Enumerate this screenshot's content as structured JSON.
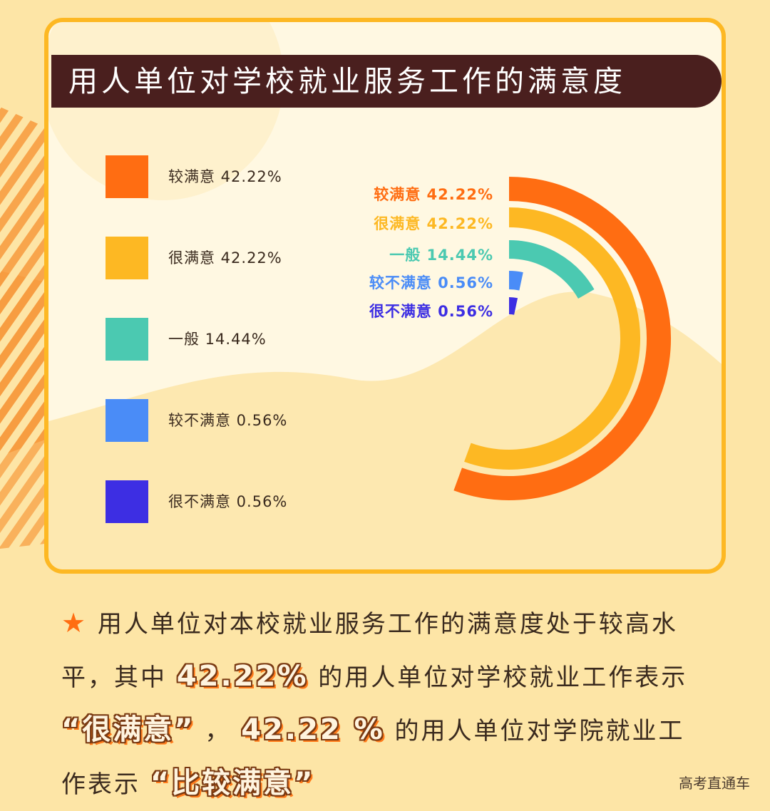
{
  "title": "用人单位对学校就业服务工作的满意度",
  "chart_data": {
    "type": "pie",
    "title": "用人单位对学校就业服务工作的满意度",
    "categories": [
      "较满意",
      "很满意",
      "一般",
      "较不满意",
      "很不满意"
    ],
    "values": [
      42.22,
      42.22,
      14.44,
      0.56,
      0.56
    ],
    "value_labels": [
      "42.22%",
      "42.22%",
      "14.44%",
      "0.56%",
      "0.56%"
    ],
    "colors": [
      "#ff6d12",
      "#fdb823",
      "#4bc9b1",
      "#4a8cf7",
      "#3d2ee3"
    ],
    "legend_position": "left"
  },
  "legend": [
    {
      "label": "较满意 42.22%"
    },
    {
      "label": "很满意 42.22%"
    },
    {
      "label": "一般 14.44%"
    },
    {
      "label": "较不满意 0.56%"
    },
    {
      "label": "很不满意 0.56%"
    }
  ],
  "arc_labels": [
    {
      "label": "较满意 42.22%"
    },
    {
      "label": "很满意 42.22%"
    },
    {
      "label": "一般 14.44%"
    },
    {
      "label": "较不满意 0.56%"
    },
    {
      "label": "很不满意 0.56%"
    }
  ],
  "summary": {
    "star": "★",
    "seg1": "用人单位对本校就业服务工作的满意度处于较高水平，其中",
    "hl1": "42.22%",
    "seg2": "的用人单位对学校就业工作表示",
    "hl2": "“很满意”",
    "seg3": "，",
    "hl3": "42.22 %",
    "seg4": "的用人单位对学院就业工作表示",
    "hl4": "“比较满意”"
  },
  "watermark": "高考直通车"
}
